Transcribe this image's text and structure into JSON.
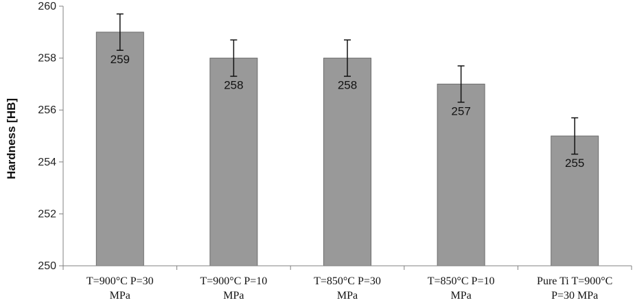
{
  "chart_data": {
    "type": "bar",
    "categories": [
      [
        "T=900°C P=30",
        "MPa"
      ],
      [
        "T=900°C P=10",
        "MPa"
      ],
      [
        "T=850°C P=30",
        "MPa"
      ],
      [
        "T=850°C P=10",
        "MPa"
      ],
      [
        "Pure Ti T=900°C",
        "P=30 MPa"
      ]
    ],
    "values": [
      259,
      258,
      258,
      257,
      255
    ],
    "error": [
      0.7,
      0.7,
      0.7,
      0.7,
      0.7
    ],
    "data_labels": [
      "259",
      "258",
      "258",
      "257",
      "255"
    ],
    "title": "",
    "xlabel": "",
    "ylabel": "Hardness [HB]",
    "ylim": [
      250,
      260
    ],
    "yticks": [
      250,
      252,
      254,
      256,
      258,
      260
    ],
    "grid": false,
    "bar_color": "#999999",
    "bar_edge_color": "#6b6b6b"
  }
}
